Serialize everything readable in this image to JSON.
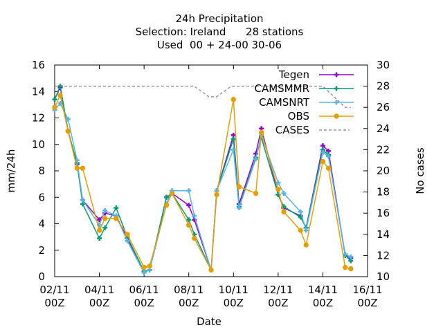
{
  "chart_data": {
    "type": "line",
    "title_lines": [
      "24h Precipitation",
      "Selection: Ireland      28 stations",
      "Used  00 + 24-00 30-06"
    ],
    "xlabel": "Date",
    "ylabel": "mm/24h",
    "y2label": "No cases",
    "x_ticks": [
      {
        "x": 0,
        "l1": "02/11",
        "l2": "00Z"
      },
      {
        "x": 2,
        "l1": "04/11",
        "l2": "00Z"
      },
      {
        "x": 4,
        "l1": "06/11",
        "l2": "00Z"
      },
      {
        "x": 6,
        "l1": "08/11",
        "l2": "00Z"
      },
      {
        "x": 8,
        "l1": "10/11",
        "l2": "00Z"
      },
      {
        "x": 10,
        "l1": "12/11",
        "l2": "00Z"
      },
      {
        "x": 12,
        "l1": "14/11",
        "l2": "00Z"
      },
      {
        "x": 14,
        "l1": "16/11",
        "l2": "00Z"
      }
    ],
    "xlim": [
      0,
      14
    ],
    "ylim": [
      0,
      16
    ],
    "y_ticks": [
      0,
      2,
      4,
      6,
      8,
      10,
      12,
      14,
      16
    ],
    "y2lim": [
      10,
      30
    ],
    "y2_ticks": [
      10,
      12,
      14,
      16,
      18,
      20,
      22,
      24,
      26,
      28,
      30
    ],
    "legend_position": "top-right",
    "series": [
      {
        "name": "Tegen",
        "color": "#9400d3",
        "marker": "plus",
        "points": [
          [
            0,
            13.4
          ],
          [
            0.25,
            14.3
          ],
          [
            0.6,
            11.0
          ],
          [
            1,
            8.5
          ],
          [
            1.25,
            5.8
          ],
          [
            2,
            4.3
          ],
          [
            2.25,
            4.8
          ],
          [
            2.75,
            4.6
          ],
          [
            3.25,
            2.9
          ],
          [
            4,
            0.4
          ],
          [
            4.25,
            0.5
          ],
          [
            5,
            6.0
          ],
          [
            5.25,
            6.3
          ],
          [
            6,
            5.4
          ],
          [
            6.25,
            4.3
          ],
          [
            7,
            0.5
          ],
          [
            7.25,
            6.5
          ],
          [
            8,
            10.7
          ],
          [
            8.25,
            5.5
          ],
          [
            9,
            9.3
          ],
          [
            9.25,
            11.2
          ],
          [
            10,
            6.2
          ],
          [
            10.25,
            5.2
          ],
          [
            11,
            4.6
          ],
          [
            11.25,
            3.7
          ],
          [
            12,
            9.9
          ],
          [
            12.25,
            9.5
          ],
          [
            13,
            1.6
          ],
          [
            13.25,
            1.4
          ]
        ]
      },
      {
        "name": "CAMSMMR",
        "color": "#009e73",
        "marker": "plus",
        "points": [
          [
            0,
            13.4
          ],
          [
            0.25,
            14.4
          ],
          [
            0.6,
            11.0
          ],
          [
            1,
            8.6
          ],
          [
            1.25,
            5.5
          ],
          [
            2,
            2.9
          ],
          [
            2.25,
            3.7
          ],
          [
            2.75,
            5.2
          ],
          [
            3.25,
            3.0
          ],
          [
            4,
            0.4
          ],
          [
            4.25,
            0.5
          ],
          [
            5,
            6.0
          ],
          [
            5.25,
            6.3
          ],
          [
            6,
            4.3
          ],
          [
            6.25,
            3.2
          ],
          [
            7,
            0.5
          ],
          [
            7.25,
            6.5
          ],
          [
            8,
            10.4
          ],
          [
            8.25,
            5.3
          ],
          [
            9,
            9.0
          ],
          [
            9.25,
            10.5
          ],
          [
            10,
            6.2
          ],
          [
            10.25,
            5.3
          ],
          [
            11,
            4.5
          ],
          [
            11.25,
            3.7
          ],
          [
            12,
            9.6
          ],
          [
            12.25,
            9.2
          ],
          [
            13,
            1.6
          ],
          [
            13.25,
            1.2
          ]
        ]
      },
      {
        "name": "CAMSNRT",
        "color": "#56b4e9",
        "marker": "plus",
        "points": [
          [
            0,
            12.6
          ],
          [
            0.25,
            13.1
          ],
          [
            0.6,
            11.9
          ],
          [
            1,
            8.8
          ],
          [
            1.25,
            5.8
          ],
          [
            2,
            3.9
          ],
          [
            2.25,
            5.0
          ],
          [
            2.75,
            4.6
          ],
          [
            3.25,
            2.7
          ],
          [
            4,
            0.3
          ],
          [
            4.25,
            0.5
          ],
          [
            5,
            5.5
          ],
          [
            5.25,
            6.5
          ],
          [
            6,
            6.5
          ],
          [
            6.25,
            4.6
          ],
          [
            7,
            0.5
          ],
          [
            7.25,
            6.5
          ],
          [
            8,
            9.6
          ],
          [
            8.25,
            5.2
          ],
          [
            9,
            8.9
          ],
          [
            9.25,
            10.7
          ],
          [
            10,
            7.1
          ],
          [
            10.25,
            6.3
          ],
          [
            11,
            4.9
          ],
          [
            11.25,
            3.5
          ],
          [
            12,
            9.4
          ],
          [
            12.25,
            9.1
          ],
          [
            13,
            1.7
          ],
          [
            13.25,
            1.5
          ]
        ]
      },
      {
        "name": "OBS",
        "color": "#e69f00",
        "marker": "circle",
        "points": [
          [
            0,
            12.8
          ],
          [
            0.25,
            13.7
          ],
          [
            0.6,
            11.0
          ],
          [
            1,
            8.2
          ],
          [
            1.25,
            8.2
          ],
          [
            2,
            3.5
          ],
          [
            2.25,
            4.4
          ],
          [
            2.75,
            4.4
          ],
          [
            3.25,
            3.2
          ],
          [
            4,
            0.7
          ],
          [
            4.25,
            0.8
          ],
          [
            5,
            5.4
          ],
          [
            5.25,
            6.3
          ],
          [
            6,
            3.9
          ],
          [
            6.25,
            2.9
          ],
          [
            7,
            0.5
          ],
          [
            7.25,
            6.2
          ],
          [
            8,
            13.4
          ],
          [
            8.25,
            6.8
          ],
          [
            9,
            6.3
          ],
          [
            9.25,
            10.9
          ],
          [
            10,
            6.6
          ],
          [
            10.25,
            4.9
          ],
          [
            11,
            3.5
          ],
          [
            11.25,
            2.4
          ],
          [
            12,
            8.7
          ],
          [
            12.25,
            8.2
          ],
          [
            13,
            0.7
          ],
          [
            13.25,
            0.6
          ]
        ]
      }
    ],
    "cases": {
      "name": "CASES",
      "color": "#999999",
      "axis": "y2",
      "points": [
        [
          0,
          28
        ],
        [
          6.25,
          28
        ],
        [
          6.9,
          27
        ],
        [
          7.25,
          27
        ],
        [
          7.9,
          28
        ],
        [
          12,
          28
        ],
        [
          12.5,
          27
        ],
        [
          13,
          26
        ],
        [
          13.25,
          26
        ]
      ]
    }
  }
}
